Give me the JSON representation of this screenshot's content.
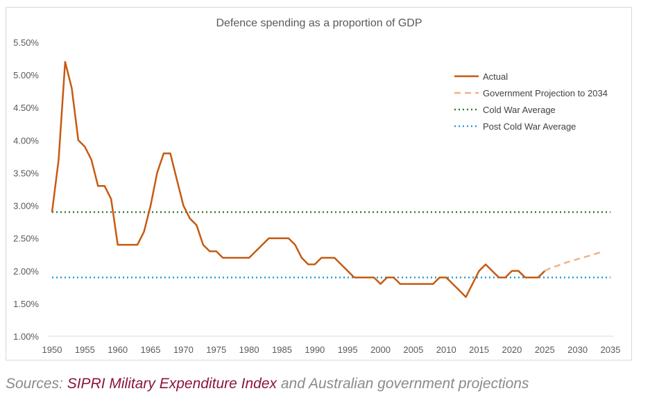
{
  "chart_data": {
    "type": "line",
    "title": "Defence spending as a proportion of GDP",
    "xlabel": "",
    "ylabel": "",
    "xlim": [
      1950,
      2035
    ],
    "ylim": [
      1.0,
      5.5
    ],
    "x_ticks": [
      "1950",
      "1955",
      "1960",
      "1965",
      "1970",
      "1975",
      "1980",
      "1985",
      "1990",
      "1995",
      "2000",
      "2005",
      "2010",
      "2015",
      "2020",
      "2025",
      "2030",
      "2035"
    ],
    "y_ticks": [
      "1.00%",
      "1.50%",
      "2.00%",
      "2.50%",
      "3.00%",
      "3.50%",
      "4.00%",
      "4.50%",
      "5.00%",
      "5.50%"
    ],
    "grid": false,
    "legend_position": "top-right",
    "series": [
      {
        "name": "Actual",
        "color": "#c55a11",
        "style": "solid",
        "x": [
          1950,
          1951,
          1952,
          1953,
          1954,
          1955,
          1956,
          1957,
          1958,
          1959,
          1960,
          1961,
          1962,
          1963,
          1964,
          1965,
          1966,
          1967,
          1968,
          1969,
          1970,
          1971,
          1972,
          1973,
          1974,
          1975,
          1976,
          1977,
          1978,
          1979,
          1980,
          1981,
          1982,
          1983,
          1984,
          1985,
          1986,
          1987,
          1988,
          1989,
          1990,
          1991,
          1992,
          1993,
          1994,
          1995,
          1996,
          1997,
          1998,
          1999,
          2000,
          2001,
          2002,
          2003,
          2004,
          2005,
          2006,
          2007,
          2008,
          2009,
          2010,
          2011,
          2012,
          2013,
          2014,
          2015,
          2016,
          2017,
          2018,
          2019,
          2020,
          2021,
          2022,
          2023,
          2024,
          2025
        ],
        "y": [
          2.9,
          3.7,
          5.2,
          4.8,
          4.0,
          3.9,
          3.7,
          3.3,
          3.3,
          3.1,
          2.4,
          2.4,
          2.4,
          2.4,
          2.6,
          3.0,
          3.5,
          3.8,
          3.8,
          3.4,
          3.0,
          2.8,
          2.7,
          2.4,
          2.3,
          2.3,
          2.2,
          2.2,
          2.2,
          2.2,
          2.2,
          2.3,
          2.4,
          2.5,
          2.5,
          2.5,
          2.5,
          2.4,
          2.2,
          2.1,
          2.1,
          2.2,
          2.2,
          2.2,
          2.1,
          2.0,
          1.9,
          1.9,
          1.9,
          1.9,
          1.8,
          1.9,
          1.9,
          1.8,
          1.8,
          1.8,
          1.8,
          1.8,
          1.8,
          1.9,
          1.9,
          1.8,
          1.7,
          1.6,
          1.8,
          2.0,
          2.1,
          2.0,
          1.9,
          1.9,
          2.0,
          2.0,
          1.9,
          1.9,
          1.9,
          2.0
        ]
      },
      {
        "name": "Government Projection to 2034",
        "color": "#f4b183",
        "style": "dashed",
        "x": [
          2025,
          2026,
          2027,
          2028,
          2029,
          2030,
          2031,
          2032,
          2033,
          2034
        ],
        "y": [
          2.0,
          2.05,
          2.08,
          2.12,
          2.15,
          2.18,
          2.21,
          2.24,
          2.27,
          2.3
        ]
      },
      {
        "name": "Cold War Average",
        "color": "#2e7d32",
        "style": "dotted",
        "x": [
          1950,
          2035
        ],
        "y": [
          2.9,
          2.9
        ]
      },
      {
        "name": "Post Cold War Average",
        "color": "#1ea0d8",
        "style": "dotted",
        "x": [
          1950,
          2035
        ],
        "y": [
          1.9,
          1.9
        ]
      }
    ]
  },
  "caption": {
    "prefix": "Sources: ",
    "link": "SIPRI Military Expenditure Index",
    "suffix": " and Australian government projections"
  }
}
